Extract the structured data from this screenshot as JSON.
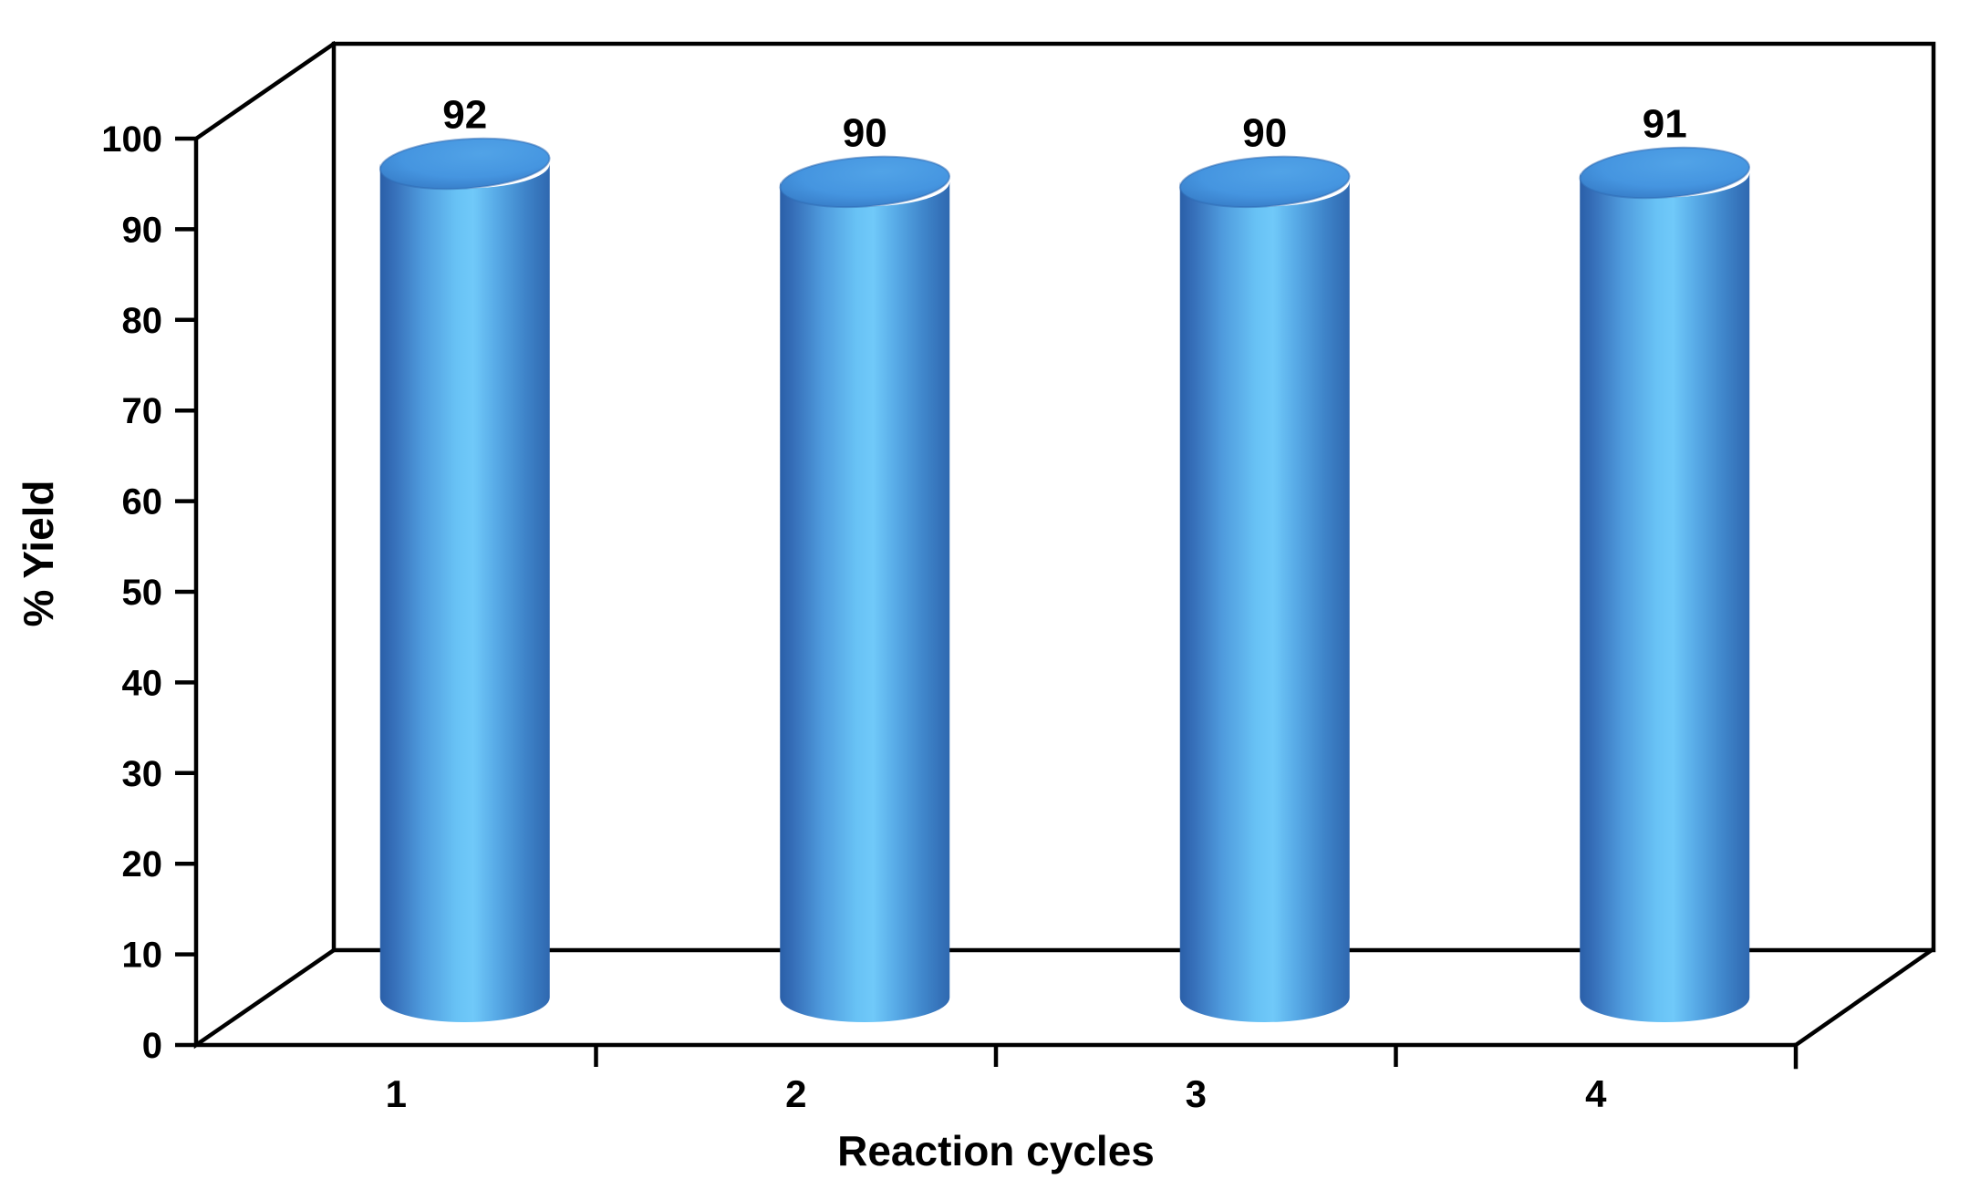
{
  "chart_data": {
    "type": "bar",
    "style": "3d-cylinder",
    "title": "",
    "xlabel": "Reaction cycles",
    "ylabel": "% Yield",
    "categories": [
      "1",
      "2",
      "3",
      "4"
    ],
    "series": [
      {
        "name": "% Yield",
        "values": [
          92,
          90,
          90,
          91
        ]
      }
    ],
    "values": [
      92,
      90,
      90,
      91
    ],
    "data_labels": [
      "92",
      "90",
      "90",
      "91"
    ],
    "ylim": [
      0,
      100
    ],
    "ytick_step": 10,
    "yticks": [
      "0",
      "10",
      "20",
      "30",
      "40",
      "50",
      "60",
      "70",
      "80",
      "90",
      "100"
    ],
    "grid": "off",
    "legend": "none",
    "colors": {
      "background": "#FFFFFF",
      "axis": "#000000",
      "cylinder_shadow": "#2A5FA8",
      "cylinder_mid": "#4F9BDD",
      "cylinder_highlight": "#70C9F9",
      "cylinder_top_face": "#4595E0"
    }
  }
}
